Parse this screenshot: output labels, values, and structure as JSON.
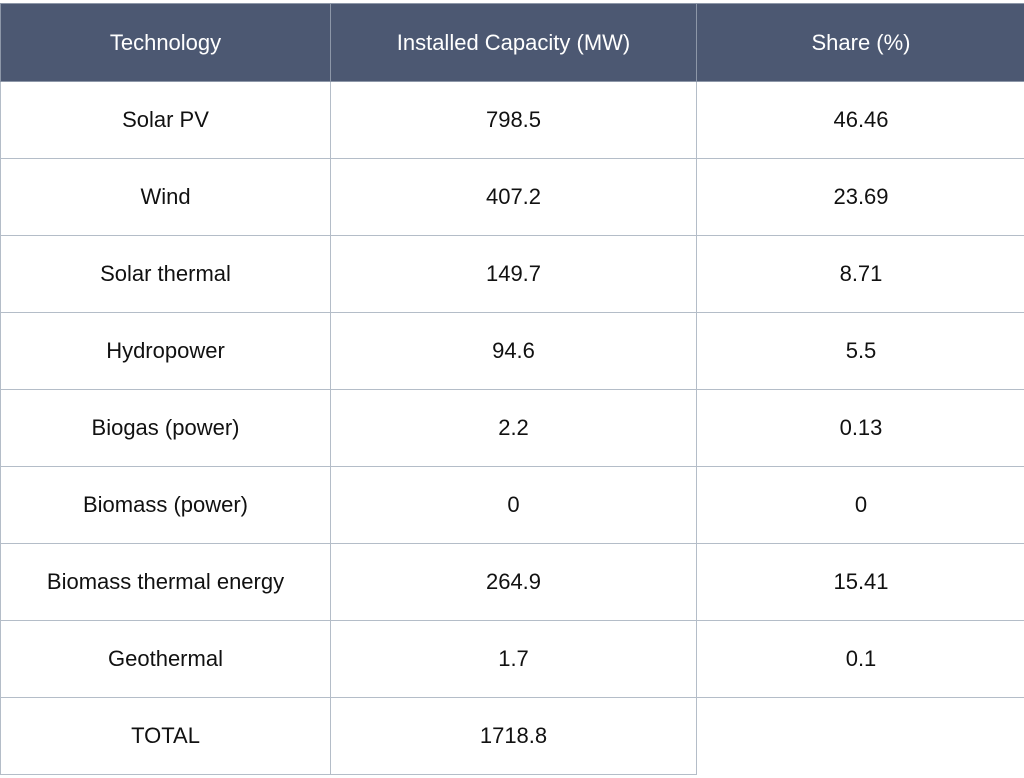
{
  "chart_data": {
    "type": "table",
    "columns": [
      "Technology",
      "Installed Capacity (MW)",
      "Share (%)"
    ],
    "rows": [
      {
        "technology": "Solar PV",
        "capacity": "798.5",
        "share": "46.46"
      },
      {
        "technology": "Wind",
        "capacity": "407.2",
        "share": "23.69"
      },
      {
        "technology": "Solar thermal",
        "capacity": "149.7",
        "share": "8.71"
      },
      {
        "technology": "Hydropower",
        "capacity": "94.6",
        "share": "5.5"
      },
      {
        "technology": "Biogas (power)",
        "capacity": "2.2",
        "share": "0.13"
      },
      {
        "technology": "Biomass (power)",
        "capacity": "0",
        "share": "0"
      },
      {
        "technology": "Biomass thermal energy",
        "capacity": "264.9",
        "share": "15.41"
      },
      {
        "technology": "Geothermal",
        "capacity": "1.7",
        "share": "0.1"
      }
    ],
    "total": {
      "label": "TOTAL",
      "capacity": "1718.8",
      "share": ""
    }
  },
  "colors": {
    "header_bg": "#4c5872",
    "header_text": "#ffffff",
    "grid": "#b4bdc8",
    "cell_text": "#111111"
  }
}
